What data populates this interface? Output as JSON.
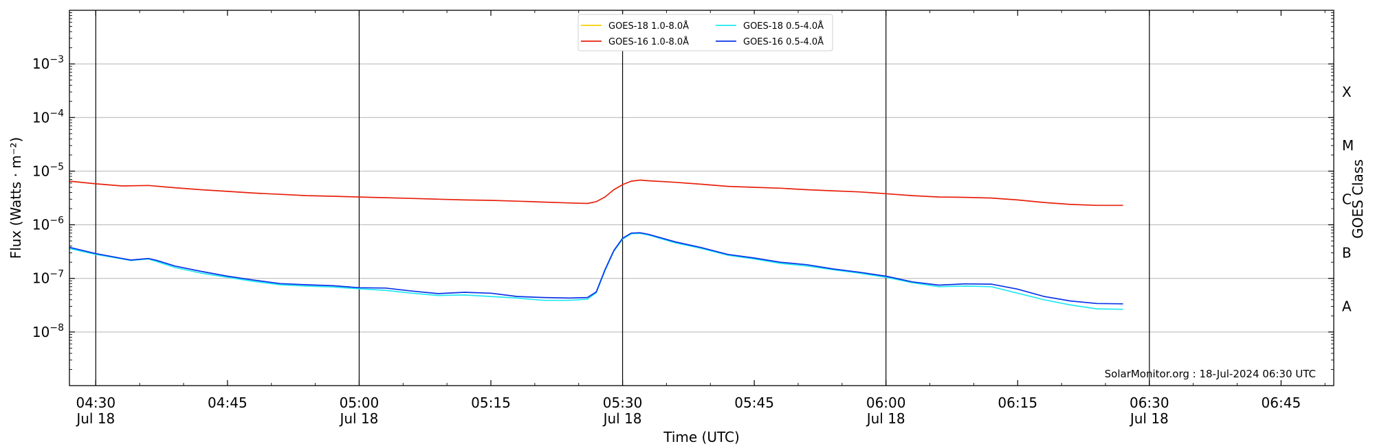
{
  "chart_data": {
    "type": "line",
    "title": "",
    "xlabel": "Time (UTC)",
    "ylabel": "Flux (Watts · m⁻²)",
    "ylabel_right": "GOES Class",
    "y_scale": "log",
    "ylim": [
      1e-09,
      0.01
    ],
    "xlim": [
      "04:27",
      "06:51"
    ],
    "grid": "horizontal",
    "legend_position": "top-center",
    "credit": "SolarMonitor.org : 18-Jul-2024 06:30 UTC",
    "x_ticks": [
      {
        "time": "04:30",
        "label": "04:30",
        "sublabel": "Jul 18",
        "vline": true
      },
      {
        "time": "04:45",
        "label": "04:45",
        "sublabel": "",
        "vline": false
      },
      {
        "time": "05:00",
        "label": "05:00",
        "sublabel": "Jul 18",
        "vline": true
      },
      {
        "time": "05:15",
        "label": "05:15",
        "sublabel": "",
        "vline": false
      },
      {
        "time": "05:30",
        "label": "05:30",
        "sublabel": "Jul 18",
        "vline": true
      },
      {
        "time": "05:45",
        "label": "05:45",
        "sublabel": "",
        "vline": false
      },
      {
        "time": "06:00",
        "label": "06:00",
        "sublabel": "Jul 18",
        "vline": true
      },
      {
        "time": "06:15",
        "label": "06:15",
        "sublabel": "",
        "vline": false
      },
      {
        "time": "06:30",
        "label": "06:30",
        "sublabel": "Jul 18",
        "vline": true
      },
      {
        "time": "06:45",
        "label": "06:45",
        "sublabel": "",
        "vline": false
      }
    ],
    "y_ticks": [
      {
        "value": 1e-08,
        "base": "10",
        "exp": "−8"
      },
      {
        "value": 1e-07,
        "base": "10",
        "exp": "−7"
      },
      {
        "value": 1e-06,
        "base": "10",
        "exp": "−6"
      },
      {
        "value": 1e-05,
        "base": "10",
        "exp": "−5"
      },
      {
        "value": 0.0001,
        "base": "10",
        "exp": "−4"
      },
      {
        "value": 0.001,
        "base": "10",
        "exp": "−3"
      }
    ],
    "goes_classes": [
      {
        "label": "A",
        "value": 3e-08
      },
      {
        "label": "B",
        "value": 3e-07
      },
      {
        "label": "C",
        "value": 3e-06
      },
      {
        "label": "M",
        "value": 3e-05
      },
      {
        "label": "X",
        "value": 0.0003
      }
    ],
    "series": [
      {
        "name": "GOES-18 1.0-8.0Å",
        "color": "#f5d000",
        "x": [],
        "values": []
      },
      {
        "name": "GOES-16 1.0-8.0Å",
        "color": "#e8200c",
        "x": [
          "04:27",
          "04:30",
          "04:33",
          "04:36",
          "04:39",
          "04:42",
          "04:45",
          "04:48",
          "04:51",
          "04:54",
          "04:57",
          "05:00",
          "05:03",
          "05:06",
          "05:09",
          "05:12",
          "05:15",
          "05:18",
          "05:21",
          "05:24",
          "05:26",
          "05:27",
          "05:28",
          "05:29",
          "05:30",
          "05:31",
          "05:32",
          "05:33",
          "05:36",
          "05:39",
          "05:42",
          "05:45",
          "05:48",
          "05:51",
          "05:54",
          "05:57",
          "06:00",
          "06:03",
          "06:06",
          "06:09",
          "06:12",
          "06:15",
          "06:18",
          "06:21",
          "06:24",
          "06:27"
        ],
        "values": [
          6.5e-06,
          5.8e-06,
          5.3e-06,
          5.4e-06,
          4.9e-06,
          4.5e-06,
          4.2e-06,
          3.9e-06,
          3.7e-06,
          3.5e-06,
          3.4e-06,
          3.3e-06,
          3.2e-06,
          3.1e-06,
          3e-06,
          2.9e-06,
          2.85e-06,
          2.75e-06,
          2.65e-06,
          2.55e-06,
          2.5e-06,
          2.7e-06,
          3.3e-06,
          4.5e-06,
          5.6e-06,
          6.5e-06,
          6.8e-06,
          6.6e-06,
          6.2e-06,
          5.7e-06,
          5.2e-06,
          5e-06,
          4.8e-06,
          4.5e-06,
          4.3e-06,
          4.1e-06,
          3.8e-06,
          3.5e-06,
          3.3e-06,
          3.25e-06,
          3.15e-06,
          2.9e-06,
          2.6e-06,
          2.4e-06,
          2.3e-06,
          2.3e-06
        ]
      },
      {
        "name": "GOES-18 0.5-4.0Å",
        "color": "#1ee8f0",
        "x": [
          "04:27",
          "04:30",
          "04:33",
          "04:34",
          "04:36",
          "04:37",
          "04:39",
          "04:42",
          "04:45",
          "04:48",
          "04:51",
          "04:54",
          "04:57",
          "05:00",
          "05:03",
          "05:06",
          "05:09",
          "05:12",
          "05:15",
          "05:18",
          "05:21",
          "05:24",
          "05:26",
          "05:27",
          "05:28",
          "05:29",
          "05:30",
          "05:31",
          "05:32",
          "05:33",
          "05:36",
          "05:39",
          "05:42",
          "05:45",
          "05:48",
          "05:51",
          "05:54",
          "05:57",
          "06:00",
          "06:03",
          "06:06",
          "06:09",
          "06:12",
          "06:15",
          "06:18",
          "06:21",
          "06:24",
          "06:27"
        ],
        "values": [
          3.6e-07,
          2.8e-07,
          2.3e-07,
          2.15e-07,
          2.3e-07,
          2.05e-07,
          1.6e-07,
          1.25e-07,
          1.05e-07,
          8.8e-08,
          7.6e-08,
          7.2e-08,
          6.9e-08,
          6.4e-08,
          6e-08,
          5.3e-08,
          4.8e-08,
          4.9e-08,
          4.6e-08,
          4.3e-08,
          3.9e-08,
          3.9e-08,
          4.1e-08,
          5.4e-08,
          1.4e-07,
          3.2e-07,
          5.4e-07,
          6.8e-07,
          6.9e-07,
          6.4e-07,
          4.6e-07,
          3.6e-07,
          2.7e-07,
          2.3e-07,
          1.9e-07,
          1.7e-07,
          1.45e-07,
          1.25e-07,
          1.05e-07,
          8.3e-08,
          7e-08,
          7.2e-08,
          7e-08,
          5.3e-08,
          4e-08,
          3.2e-08,
          2.7e-08,
          2.65e-08
        ]
      },
      {
        "name": "GOES-16 0.5-4.0Å",
        "color": "#0a32e8",
        "x": [
          "04:27",
          "04:30",
          "04:33",
          "04:34",
          "04:36",
          "04:37",
          "04:39",
          "04:42",
          "04:45",
          "04:48",
          "04:51",
          "04:54",
          "04:57",
          "05:00",
          "05:03",
          "05:06",
          "05:09",
          "05:12",
          "05:15",
          "05:18",
          "05:21",
          "05:24",
          "05:26",
          "05:27",
          "05:28",
          "05:29",
          "05:30",
          "05:31",
          "05:32",
          "05:33",
          "05:36",
          "05:39",
          "05:42",
          "05:45",
          "05:48",
          "05:51",
          "05:54",
          "05:57",
          "06:00",
          "06:03",
          "06:06",
          "06:09",
          "06:12",
          "06:15",
          "06:18",
          "06:21",
          "06:24",
          "06:27"
        ],
        "values": [
          3.8e-07,
          2.9e-07,
          2.35e-07,
          2.2e-07,
          2.35e-07,
          2.15e-07,
          1.7e-07,
          1.35e-07,
          1.1e-07,
          9.3e-08,
          8e-08,
          7.6e-08,
          7.3e-08,
          6.7e-08,
          6.6e-08,
          5.8e-08,
          5.2e-08,
          5.5e-08,
          5.3e-08,
          4.6e-08,
          4.4e-08,
          4.3e-08,
          4.4e-08,
          5.6e-08,
          1.45e-07,
          3.3e-07,
          5.6e-07,
          7e-07,
          7.1e-07,
          6.6e-07,
          4.8e-07,
          3.75e-07,
          2.8e-07,
          2.4e-07,
          2e-07,
          1.8e-07,
          1.5e-07,
          1.3e-07,
          1.1e-07,
          8.6e-08,
          7.5e-08,
          7.9e-08,
          7.8e-08,
          6.3e-08,
          4.6e-08,
          3.8e-08,
          3.4e-08,
          3.35e-08
        ]
      }
    ]
  }
}
